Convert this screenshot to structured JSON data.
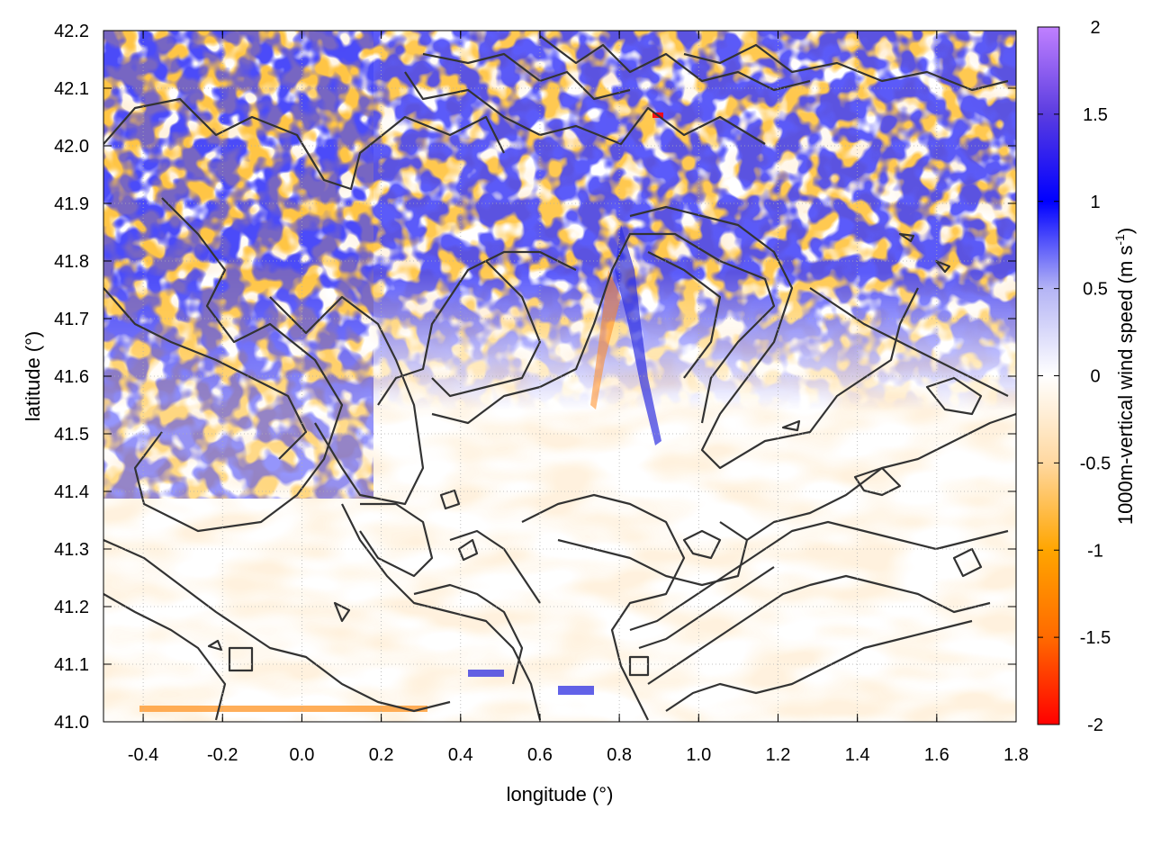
{
  "chart_data": {
    "type": "heatmap",
    "title": "",
    "xlabel": "longitude (°)",
    "ylabel": "latitude (°)",
    "colorbar_label": "1000m-vertical wind speed (m s",
    "colorbar_label_sup": "-1",
    "colorbar_label_suffix": ")",
    "xlim": [
      -0.5,
      1.8
    ],
    "ylim": [
      41.0,
      42.2
    ],
    "clim": [
      -2,
      2
    ],
    "x_ticks": [
      -0.4,
      -0.2,
      0.0,
      0.2,
      0.4,
      0.6,
      0.8,
      1.0,
      1.2,
      1.4,
      1.6,
      1.8
    ],
    "x_tick_labels": [
      "-0.4",
      "-0.2",
      "0.0",
      "0.2",
      "0.4",
      "0.6",
      "0.8",
      "1.0",
      "1.2",
      "1.4",
      "1.6",
      "1.8"
    ],
    "y_ticks": [
      41.0,
      41.1,
      41.2,
      41.3,
      41.4,
      41.5,
      41.6,
      41.7,
      41.8,
      41.9,
      42.0,
      42.1,
      42.2
    ],
    "y_tick_labels": [
      "41.0",
      "41.1",
      "41.2",
      "41.3",
      "41.4",
      "41.5",
      "41.6",
      "41.7",
      "41.8",
      "41.9",
      "42.0",
      "42.1",
      "42.2"
    ],
    "colorbar_ticks": [
      -2,
      -1.5,
      -1,
      -0.5,
      0,
      0.5,
      1,
      1.5,
      2
    ],
    "colorbar_tick_labels": [
      "-2",
      "-1.5",
      "-1",
      "-0.5",
      "0",
      "0.5",
      "1",
      "1.5",
      "2"
    ],
    "colormap": [
      {
        "value": -2,
        "color": "#ff0000"
      },
      {
        "value": -1.5,
        "color": "#ff6a00"
      },
      {
        "value": -1,
        "color": "#ffa500"
      },
      {
        "value": -0.5,
        "color": "#ffd8a0"
      },
      {
        "value": 0,
        "color": "#ffffff"
      },
      {
        "value": 0.5,
        "color": "#b4b4f5"
      },
      {
        "value": 1,
        "color": "#0000ff"
      },
      {
        "value": 1.5,
        "color": "#5a3ce0"
      },
      {
        "value": 2,
        "color": "#c080ff"
      }
    ],
    "contour_color": "#333333",
    "grid": true,
    "grid_style": "dotted"
  }
}
